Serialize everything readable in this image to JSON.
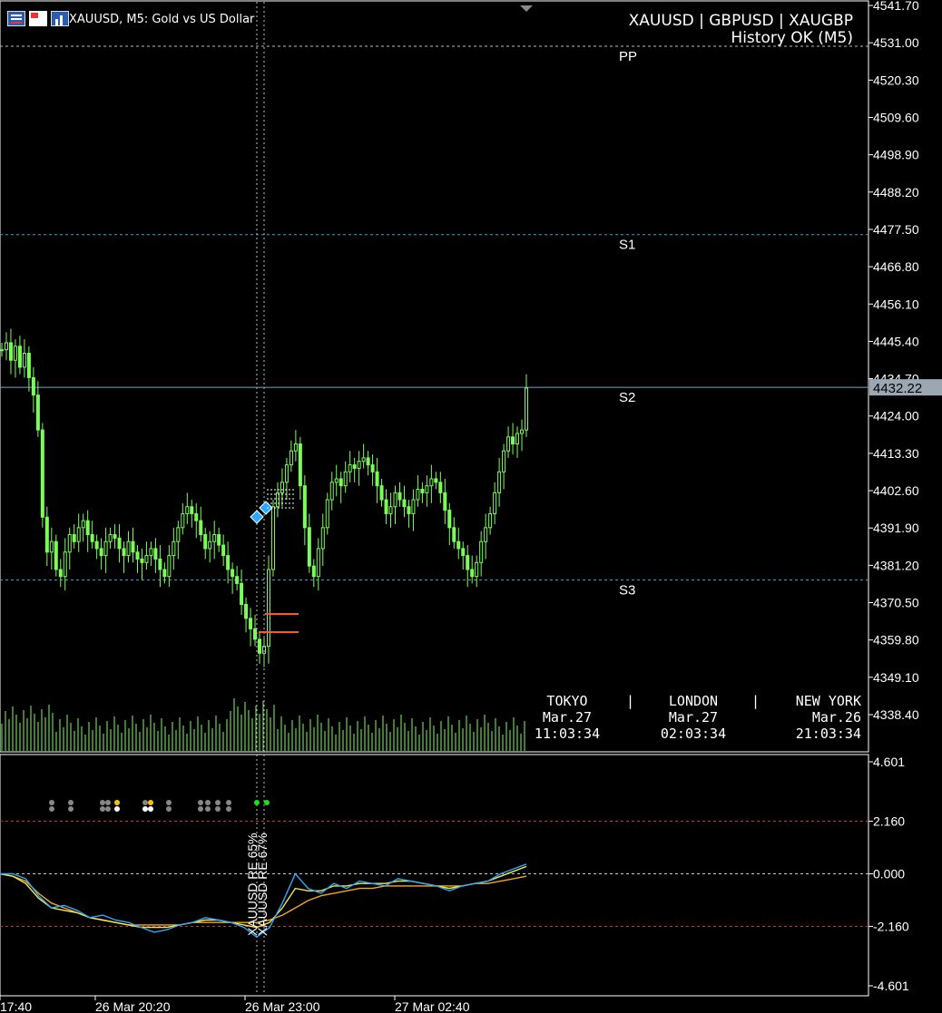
{
  "header": {
    "symbol_info": "XAUUSD, M5:  Gold vs US Dollar",
    "pairs": "XAUUSD | GBPUSD | XAUGBP",
    "history": "History OK (M5)"
  },
  "toolbar_icons": [
    "market-list-icon",
    "chart-flag-icon",
    "bar-chart-icon"
  ],
  "price_axis": {
    "ticks": [
      "4541.70",
      "4531.00",
      "4520.30",
      "4509.60",
      "4498.90",
      "4488.20",
      "4477.50",
      "4466.80",
      "4456.10",
      "4445.40",
      "4434.70",
      "4424.00",
      "4413.30",
      "4402.60",
      "4391.90",
      "4381.20",
      "4370.50",
      "4359.80",
      "4349.10",
      "4338.40"
    ],
    "current_price": "4432.22"
  },
  "pivot_levels": [
    {
      "label": "PP",
      "price": 4530.0
    },
    {
      "label": "S1",
      "price": 4476.0
    },
    {
      "label": "S2",
      "price": 4432.22
    },
    {
      "label": "S3",
      "price": 4377.0
    }
  ],
  "sessions": [
    {
      "name": "TOKYO",
      "date": "Mar.27",
      "time": "11:03:34"
    },
    {
      "name": "LONDON",
      "date": "Mar.27",
      "time": "02:03:34"
    },
    {
      "name": "NEW YORK",
      "date": "Mar.26",
      "time": "21:03:34"
    }
  ],
  "session_separator": "|",
  "indicator_axis": {
    "ticks": [
      "4.601",
      "2.160",
      "0.000",
      "-2.160",
      "-4.601"
    ]
  },
  "indicator_labels": [
    "XAUUSD RE 65%",
    "XAUUSD RE 67%"
  ],
  "time_axis": {
    "ticks": [
      "17:40",
      "26 Mar 20:20",
      "26 Mar 23:00",
      "27 Mar 02:40"
    ]
  },
  "colors": {
    "candle": "#7cfc5a",
    "grid_dash": "#3aa0d8",
    "current_line": "#6fa8c8",
    "red_dash": "#c0392b",
    "fast_line": "#2ea7ff",
    "mid_line": "#f2e94e",
    "slow_line": "#f5a623",
    "order_marker": "#ff5522"
  },
  "chart_data": {
    "type": "candlestick",
    "symbol": "XAUUSD",
    "timeframe": "M5",
    "ylim": [
      4338.4,
      4541.7
    ],
    "close_series": [
      4443,
      4445,
      4440,
      4444,
      4438,
      4442,
      4435,
      4430,
      4420,
      4395,
      4385,
      4388,
      4380,
      4378,
      4385,
      4390,
      4388,
      4392,
      4394,
      4390,
      4388,
      4386,
      4384,
      4388,
      4390,
      4389,
      4386,
      4384,
      4388,
      4385,
      4383,
      4382,
      4384,
      4386,
      4383,
      4380,
      4378,
      4384,
      4388,
      4392,
      4396,
      4398,
      4396,
      4394,
      4390,
      4386,
      4388,
      4390,
      4387,
      4384,
      4380,
      4378,
      4376,
      4370,
      4366,
      4363,
      4360,
      4356,
      4358,
      4380,
      4398,
      4402,
      4405,
      4410,
      4414,
      4416,
      4404,
      4392,
      4381,
      4378,
      4386,
      4392,
      4400,
      4405,
      4406,
      4404,
      4408,
      4410,
      4409,
      4411,
      4412,
      4410,
      4408,
      4404,
      4400,
      4396,
      4398,
      4402,
      4400,
      4398,
      4396,
      4400,
      4403,
      4402,
      4404,
      4406,
      4405,
      4402,
      4397,
      4392,
      4388,
      4386,
      4384,
      4380,
      4378,
      4382,
      4388,
      4392,
      4396,
      4402,
      4408,
      4414,
      4418,
      4416,
      4419,
      4420,
      4432
    ],
    "indicator": {
      "range": [
        -4.601,
        4.601
      ],
      "levels": [
        2.16,
        0,
        -2.16
      ],
      "fast": [
        0,
        0,
        -0.2,
        -0.9,
        -1.4,
        -1.3,
        -1.5,
        -1.8,
        -1.7,
        -1.9,
        -2.0,
        -2.2,
        -2.4,
        -2.3,
        -2.1,
        -2.0,
        -1.8,
        -1.9,
        -2.0,
        -2.2,
        -2.6,
        -2.2,
        -1.2,
        0.0,
        -0.6,
        -0.8,
        -0.4,
        -0.6,
        -0.3,
        -0.4,
        -0.5,
        -0.2,
        -0.3,
        -0.4,
        -0.5,
        -0.7,
        -0.5,
        -0.4,
        -0.3,
        0.0,
        0.2,
        0.4
      ],
      "mid": [
        0,
        -0.1,
        -0.4,
        -1.0,
        -1.4,
        -1.5,
        -1.6,
        -1.8,
        -1.9,
        -2.0,
        -2.1,
        -2.2,
        -2.2,
        -2.2,
        -2.1,
        -2.0,
        -1.9,
        -1.9,
        -2.0,
        -2.1,
        -2.2,
        -2.0,
        -1.4,
        -0.6,
        -0.7,
        -0.7,
        -0.5,
        -0.5,
        -0.4,
        -0.4,
        -0.4,
        -0.3,
        -0.3,
        -0.4,
        -0.5,
        -0.6,
        -0.5,
        -0.4,
        -0.3,
        -0.1,
        0.1,
        0.3
      ],
      "slow": [
        0,
        -0.1,
        -0.3,
        -0.8,
        -1.2,
        -1.4,
        -1.6,
        -1.8,
        -1.9,
        -2.0,
        -2.1,
        -2.1,
        -2.1,
        -2.1,
        -2.1,
        -2.0,
        -2.0,
        -2.0,
        -2.0,
        -2.0,
        -2.0,
        -1.9,
        -1.7,
        -1.4,
        -1.1,
        -0.9,
        -0.8,
        -0.7,
        -0.6,
        -0.6,
        -0.5,
        -0.5,
        -0.5,
        -0.5,
        -0.5,
        -0.5,
        -0.5,
        -0.4,
        -0.4,
        -0.3,
        -0.2,
        -0.1
      ]
    }
  }
}
